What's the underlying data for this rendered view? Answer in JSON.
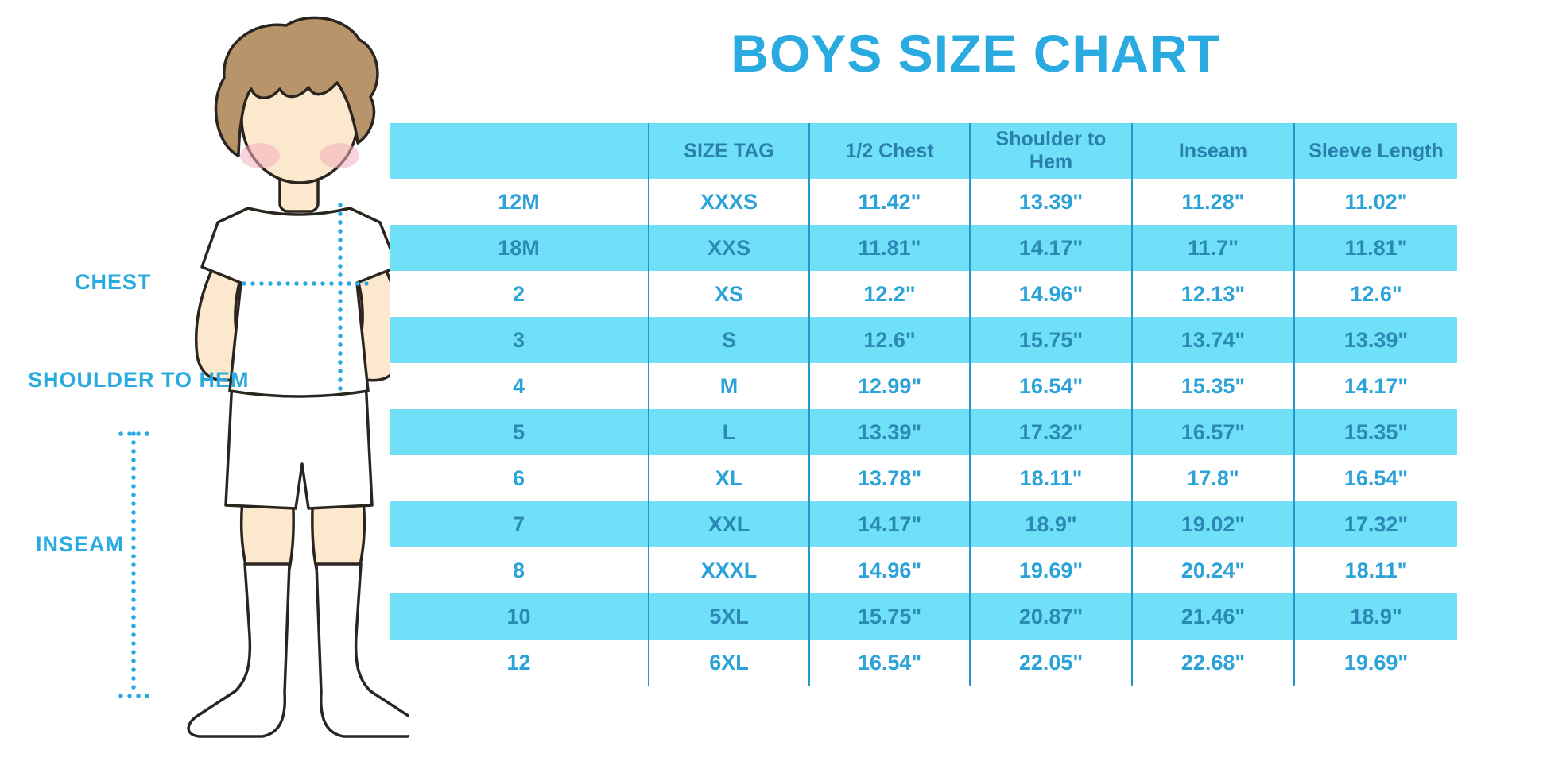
{
  "title": "BOYS SIZE CHART",
  "illustration": {
    "labels": {
      "chest": "CHEST",
      "shoulder_to_hem": "SHOULDER TO HEM",
      "inseam": "INSEAM"
    }
  },
  "colors": {
    "accent": "#29ABE2",
    "band": "#6FE0F8",
    "header_text": "#2980AC",
    "band_row_text": "#2A8AB4",
    "white_row_text": "#2BA2D8",
    "divider": "#2598CB",
    "skin": "#FBE8CD",
    "hair": "#B7946A",
    "outline": "#2B2520",
    "blush": "#F3AEBE"
  },
  "chart_data": {
    "type": "table",
    "title": "BOYS SIZE CHART",
    "columns": [
      "",
      "SIZE TAG",
      "1/2 Chest",
      "Shoulder to Hem",
      "Inseam",
      "Sleeve Length"
    ],
    "rows": [
      [
        "12M",
        "XXXS",
        "11.42\"",
        "13.39\"",
        "11.28\"",
        "11.02\""
      ],
      [
        "18M",
        "XXS",
        "11.81\"",
        "14.17\"",
        "11.7\"",
        "11.81\""
      ],
      [
        "2",
        "XS",
        "12.2\"",
        "14.96\"",
        "12.13\"",
        "12.6\""
      ],
      [
        "3",
        "S",
        "12.6\"",
        "15.75\"",
        "13.74\"",
        "13.39\""
      ],
      [
        "4",
        "M",
        "12.99\"",
        "16.54\"",
        "15.35\"",
        "14.17\""
      ],
      [
        "5",
        "L",
        "13.39\"",
        "17.32\"",
        "16.57\"",
        "15.35\""
      ],
      [
        "6",
        "XL",
        "13.78\"",
        "18.11\"",
        "17.8\"",
        "16.54\""
      ],
      [
        "7",
        "XXL",
        "14.17\"",
        "18.9\"",
        "19.02\"",
        "17.32\""
      ],
      [
        "8",
        "XXXL",
        "14.96\"",
        "19.69\"",
        "20.24\"",
        "18.11\""
      ],
      [
        "10",
        "5XL",
        "15.75\"",
        "20.87\"",
        "21.46\"",
        "18.9\""
      ],
      [
        "12",
        "6XL",
        "16.54\"",
        "22.05\"",
        "22.68\"",
        "19.69\""
      ]
    ]
  }
}
